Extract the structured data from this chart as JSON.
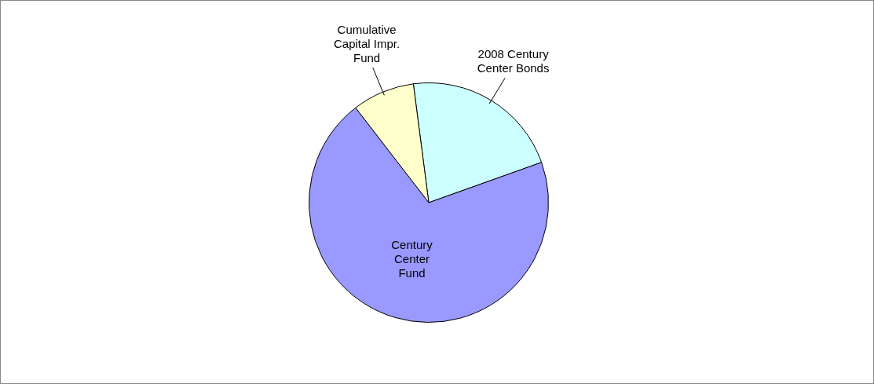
{
  "chart_data": {
    "type": "pie",
    "categories": [
      "2008 Century Center Bonds",
      "Century Center Fund",
      "Cumulative Capital Impr. Fund"
    ],
    "values": [
      21.6,
      70.0,
      8.4
    ],
    "colors": [
      "#ccffff",
      "#9999ff",
      "#ffffcc"
    ]
  }
}
